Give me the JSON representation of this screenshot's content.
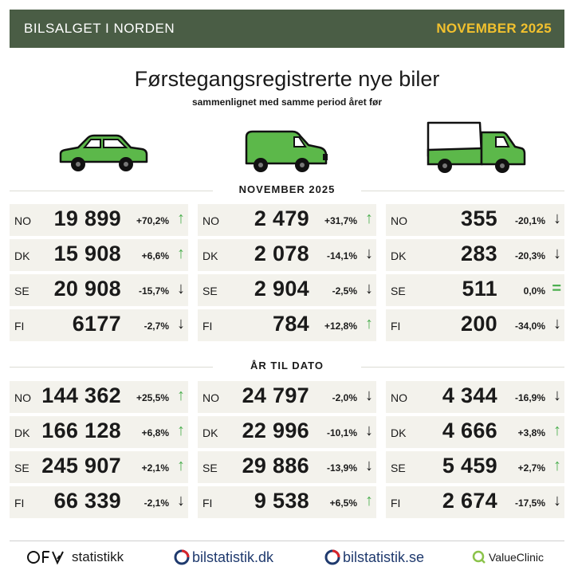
{
  "header": {
    "left": "BILSALGET I NORDEN",
    "right": "NOVEMBER 2025"
  },
  "title": "Førstegangsregistrerte nye biler",
  "subtitle": "sammenlignet med samme period året før",
  "vehicles": [
    "car-icon",
    "van-icon",
    "truck-icon"
  ],
  "colors": {
    "header_bg": "#4a5d45",
    "header_accent": "#f2c12e",
    "vehicle_green": "#5cb84a",
    "arrow_up": "#4caf50",
    "cell_bg": "#f3f2ec"
  },
  "sections": [
    {
      "label": "NOVEMBER 2025",
      "columns": [
        [
          {
            "country": "NO",
            "value": "19 899",
            "change": "+70,2%",
            "dir": "up"
          },
          {
            "country": "DK",
            "value": "15 908",
            "change": "+6,6%",
            "dir": "up"
          },
          {
            "country": "SE",
            "value": "20 908",
            "change": "-15,7%",
            "dir": "down"
          },
          {
            "country": "FI",
            "value": "6177",
            "change": "-2,7%",
            "dir": "down"
          }
        ],
        [
          {
            "country": "NO",
            "value": "2 479",
            "change": "+31,7%",
            "dir": "up"
          },
          {
            "country": "DK",
            "value": "2 078",
            "change": "-14,1%",
            "dir": "down"
          },
          {
            "country": "SE",
            "value": "2 904",
            "change": "-2,5%",
            "dir": "down"
          },
          {
            "country": "FI",
            "value": "784",
            "change": "+12,8%",
            "dir": "up"
          }
        ],
        [
          {
            "country": "NO",
            "value": "355",
            "change": "-20,1%",
            "dir": "down"
          },
          {
            "country": "DK",
            "value": "283",
            "change": "-20,3%",
            "dir": "down"
          },
          {
            "country": "SE",
            "value": "511",
            "change": "0,0%",
            "dir": "eq"
          },
          {
            "country": "FI",
            "value": "200",
            "change": "-34,0%",
            "dir": "down"
          }
        ]
      ]
    },
    {
      "label": "ÅR TIL DATO",
      "columns": [
        [
          {
            "country": "NO",
            "value": "144 362",
            "change": "+25,5%",
            "dir": "up"
          },
          {
            "country": "DK",
            "value": "166 128",
            "change": "+6,8%",
            "dir": "up"
          },
          {
            "country": "SE",
            "value": "245 907",
            "change": "+2,1%",
            "dir": "up"
          },
          {
            "country": "FI",
            "value": "66 339",
            "change": "-2,1%",
            "dir": "down"
          }
        ],
        [
          {
            "country": "NO",
            "value": "24 797",
            "change": "-2,0%",
            "dir": "down"
          },
          {
            "country": "DK",
            "value": "22 996",
            "change": "-10,1%",
            "dir": "down"
          },
          {
            "country": "SE",
            "value": "29 886",
            "change": "-13,9%",
            "dir": "down"
          },
          {
            "country": "FI",
            "value": "9 538",
            "change": "+6,5%",
            "dir": "up"
          }
        ],
        [
          {
            "country": "NO",
            "value": "4 344",
            "change": "-16,9%",
            "dir": "down"
          },
          {
            "country": "DK",
            "value": "4 666",
            "change": "+3,8%",
            "dir": "up"
          },
          {
            "country": "SE",
            "value": "5 459",
            "change": "+2,7%",
            "dir": "up"
          },
          {
            "country": "FI",
            "value": "2 674",
            "change": "-17,5%",
            "dir": "down"
          }
        ]
      ]
    }
  ],
  "footer": {
    "logos": [
      {
        "name": "ofv-logo",
        "text": "statistikk"
      },
      {
        "name": "bilstatistik-dk-logo",
        "text": "bilstatistik.dk"
      },
      {
        "name": "bilstatistik-se-logo",
        "text": "bilstatistik.se"
      },
      {
        "name": "valueclinic-logo",
        "text": "ValueClinic"
      }
    ]
  }
}
